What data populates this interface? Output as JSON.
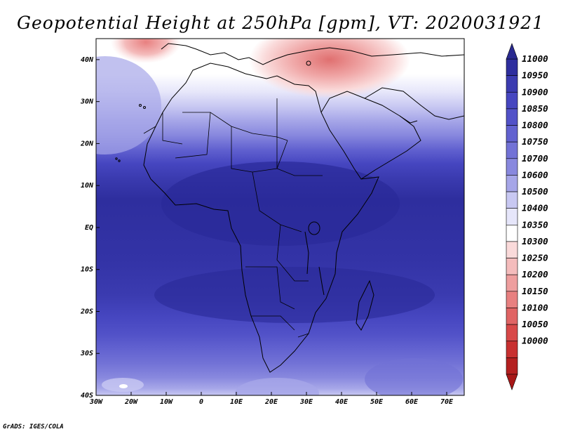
{
  "title": "Geopotential Height at 250hPa [gpm], VT: 2020031921",
  "credit": "GrADS: IGES/COLA",
  "map": {
    "lon_range": [
      -30,
      75
    ],
    "lat_range": [
      -40,
      45
    ],
    "lon_ticks": [
      {
        "value": -30,
        "label": "30W"
      },
      {
        "value": -20,
        "label": "20W"
      },
      {
        "value": -10,
        "label": "10W"
      },
      {
        "value": 0,
        "label": "0"
      },
      {
        "value": 10,
        "label": "10E"
      },
      {
        "value": 20,
        "label": "20E"
      },
      {
        "value": 30,
        "label": "30E"
      },
      {
        "value": 40,
        "label": "40E"
      },
      {
        "value": 50,
        "label": "50E"
      },
      {
        "value": 60,
        "label": "60E"
      },
      {
        "value": 70,
        "label": "70E"
      }
    ],
    "lat_ticks": [
      {
        "value": 40,
        "label": "40N"
      },
      {
        "value": 30,
        "label": "30N"
      },
      {
        "value": 20,
        "label": "20N"
      },
      {
        "value": 10,
        "label": "10N"
      },
      {
        "value": 0,
        "label": "EQ"
      },
      {
        "value": -10,
        "label": "10S"
      },
      {
        "value": -20,
        "label": "20S"
      },
      {
        "value": -30,
        "label": "30S"
      },
      {
        "value": -40,
        "label": "40S"
      }
    ]
  },
  "colorbar": {
    "levels": [
      "11000",
      "10950",
      "10900",
      "10850",
      "10800",
      "10750",
      "10700",
      "10600",
      "10500",
      "10400",
      "10350",
      "10300",
      "10250",
      "10200",
      "10150",
      "10100",
      "10050",
      "10000"
    ],
    "colors": [
      "#2e2e9e",
      "#3b3bb0",
      "#4646c0",
      "#5252c8",
      "#6262d0",
      "#7272d6",
      "#8888de",
      "#a6a6e8",
      "#c8c8f2",
      "#e6e6fa",
      "#ffffff",
      "#fadada",
      "#f4bcbc",
      "#ee9e9e",
      "#e88080",
      "#e06464",
      "#d84848",
      "#c83030",
      "#b42020"
    ]
  }
}
